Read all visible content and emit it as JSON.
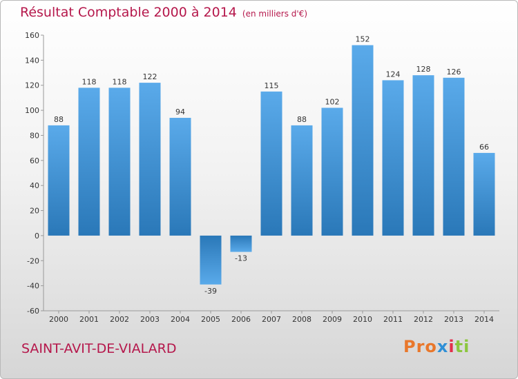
{
  "title": "Résultat Comptable 2000 à 2014",
  "subtitle": "(en milliers d'€)",
  "commune": "SAINT-AVIT-DE-VIALARD",
  "logo": {
    "p1": "Pro",
    "p2": "x",
    "p3": "i",
    "p4": "ti"
  },
  "colors": {
    "title": "#b5174b",
    "bar_light": "#5aaaea",
    "bar_dark": "#2a78b8"
  },
  "chart_data": {
    "type": "bar",
    "categories": [
      "2000",
      "2001",
      "2002",
      "2003",
      "2004",
      "2005",
      "2006",
      "2007",
      "2008",
      "2009",
      "2010",
      "2011",
      "2012",
      "2013",
      "2014"
    ],
    "values": [
      88,
      118,
      118,
      122,
      94,
      -39,
      -13,
      115,
      88,
      102,
      152,
      124,
      128,
      126,
      66
    ],
    "title": "Résultat Comptable 2000 à 2014",
    "xlabel": "",
    "ylabel": "",
    "ylim": [
      -60,
      160
    ],
    "yticks": [
      -60,
      -40,
      -20,
      0,
      20,
      40,
      60,
      80,
      100,
      120,
      140,
      160
    ],
    "grid": false
  }
}
